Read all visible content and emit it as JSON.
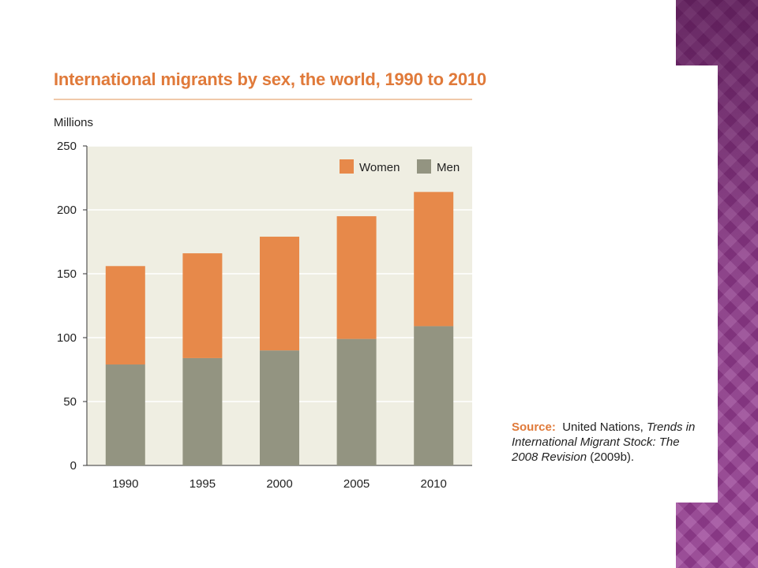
{
  "chart_data": {
    "type": "bar",
    "stacked": true,
    "title": "International migrants by sex, the world, 1990 to 2010",
    "ylabel": "Millions",
    "xlabel": "",
    "categories": [
      "1990",
      "1995",
      "2000",
      "2005",
      "2010"
    ],
    "series": [
      {
        "name": "Men",
        "values": [
          79,
          84,
          90,
          99,
          109
        ]
      },
      {
        "name": "Women",
        "values": [
          77,
          82,
          89,
          96,
          105
        ]
      }
    ],
    "ylim": [
      0,
      250
    ],
    "yticks": [
      0,
      50,
      100,
      150,
      200,
      250
    ],
    "grid": true,
    "legend": "top-right",
    "colors": {
      "Women": "#e7894a",
      "Men": "#939481",
      "plot_background": "#efeee2",
      "title": "#e07a3a"
    }
  },
  "source": {
    "label": "Source:",
    "text_plain": "United Nations, ",
    "text_italic": "Trends in International Migrant Stock: The 2008 Revision",
    "text_end": " (2009b)."
  }
}
